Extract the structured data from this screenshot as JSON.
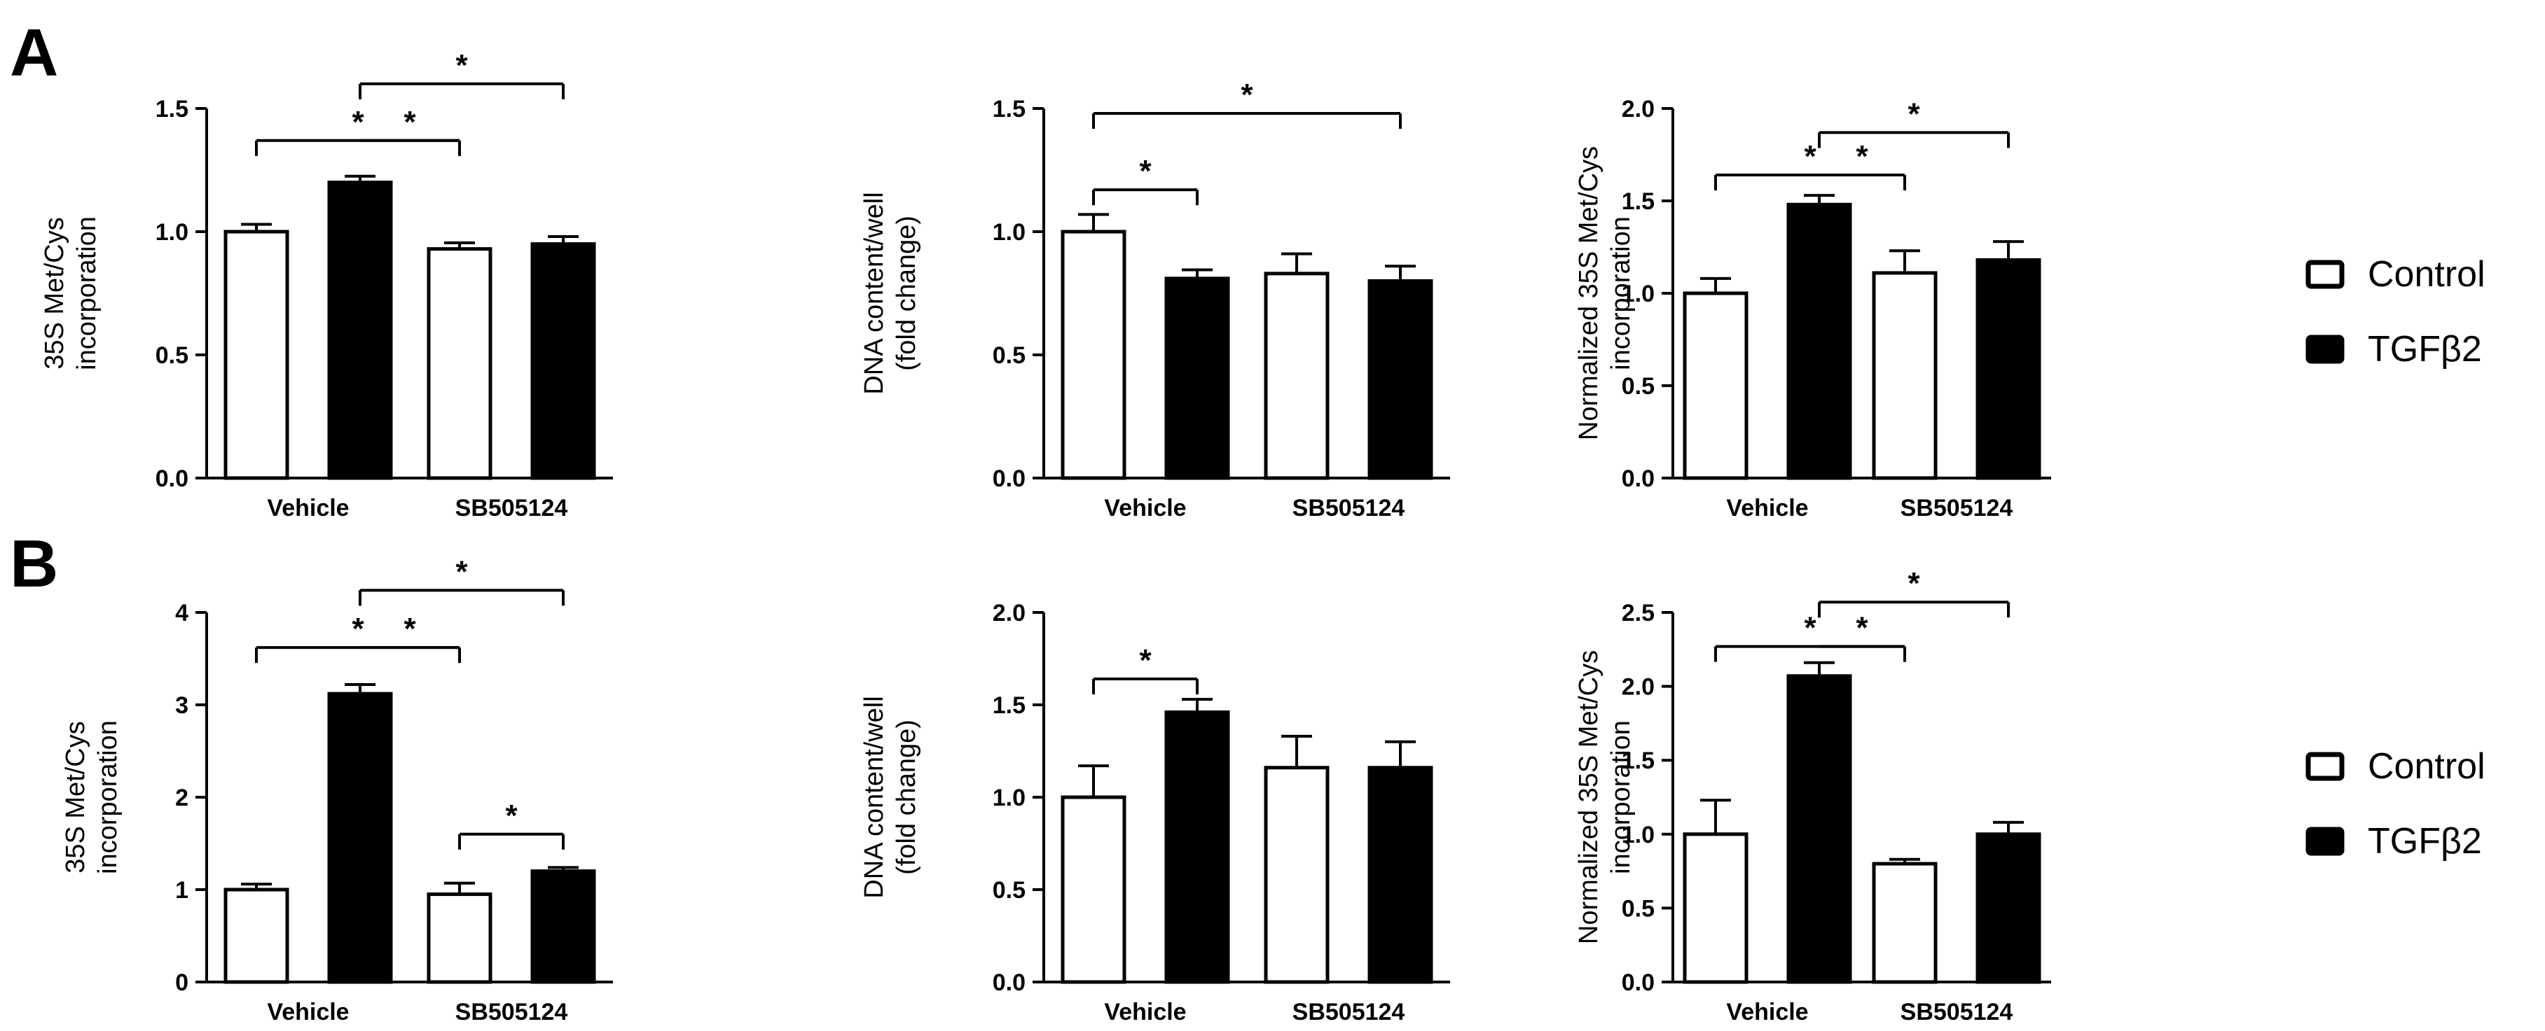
{
  "panels": [
    {
      "label": "A"
    },
    {
      "label": "B"
    }
  ],
  "legend": {
    "entries": [
      {
        "name": "Control",
        "fill": "#ffffff"
      },
      {
        "name": "TGFβ2",
        "fill": "#000000"
      }
    ]
  },
  "colors": {
    "control": "#ffffff",
    "tgf": "#000000",
    "stroke": "#000000"
  },
  "chart_data": [
    {
      "id": "A1",
      "type": "bar",
      "panel": "A",
      "title": "",
      "xlabel": "",
      "ylabel": [
        "35S Met/Cys",
        "incorporation"
      ],
      "categories": [
        "Vehicle",
        "SB505124"
      ],
      "series": [
        {
          "name": "Control",
          "values": [
            1.0,
            0.93
          ],
          "errors": [
            0.03,
            0.025
          ]
        },
        {
          "name": "TGFβ2",
          "values": [
            1.2,
            0.95
          ],
          "errors": [
            0.025,
            0.03
          ]
        }
      ],
      "ylim": [
        0,
        1.5
      ],
      "yticks": [
        0.0,
        0.5,
        1.0,
        1.5
      ],
      "yticklabels": [
        "0.0",
        "0.5",
        "1.0",
        "1.5"
      ],
      "brackets": [
        {
          "from": [
            0,
            0
          ],
          "to": [
            1,
            0
          ],
          "y": 1.37,
          "label": "*"
        },
        {
          "from": [
            0,
            1
          ],
          "to": [
            1,
            1
          ],
          "y": 1.6,
          "label": "*",
          "drop_from": true
        },
        {
          "from": [
            0,
            1
          ],
          "to": [
            1,
            0
          ],
          "y": 1.37,
          "label": "*",
          "trunk": true
        }
      ]
    },
    {
      "id": "A2",
      "type": "bar",
      "panel": "A",
      "title": "",
      "xlabel": "",
      "ylabel": [
        "DNA content/well",
        "(fold change)"
      ],
      "categories": [
        "Vehicle",
        "SB505124"
      ],
      "series": [
        {
          "name": "Control",
          "values": [
            1.0,
            0.83
          ],
          "errors": [
            0.07,
            0.08
          ]
        },
        {
          "name": "TGFβ2",
          "values": [
            0.81,
            0.8
          ],
          "errors": [
            0.035,
            0.06
          ]
        }
      ],
      "ylim": [
        0,
        1.5
      ],
      "yticks": [
        0.0,
        0.5,
        1.0,
        1.5
      ],
      "yticklabels": [
        "0.0",
        "0.5",
        "1.0",
        "1.5"
      ],
      "brackets": [
        {
          "from": [
            0,
            0
          ],
          "to": [
            0,
            1
          ],
          "y": 1.17,
          "label": "*"
        },
        {
          "from": [
            0,
            0
          ],
          "to": [
            1,
            1
          ],
          "y": 1.48,
          "label": "*"
        }
      ]
    },
    {
      "id": "A3",
      "type": "bar",
      "panel": "A",
      "title": "",
      "xlabel": "",
      "ylabel": [
        "Normalized 35S Met/Cys",
        "incorporation"
      ],
      "categories": [
        "Vehicle",
        "SB505124"
      ],
      "series": [
        {
          "name": "Control",
          "values": [
            1.0,
            1.11
          ],
          "errors": [
            0.08,
            0.12
          ]
        },
        {
          "name": "TGFβ2",
          "values": [
            1.48,
            1.18
          ],
          "errors": [
            0.05,
            0.1
          ]
        }
      ],
      "ylim": [
        0,
        2.0
      ],
      "yticks": [
        0.0,
        0.5,
        1.0,
        1.5,
        2.0
      ],
      "yticklabels": [
        "0.0",
        "0.5",
        "1.0",
        "1.5",
        "2.0"
      ],
      "brackets": [
        {
          "from": [
            0,
            0
          ],
          "to": [
            1,
            0
          ],
          "y": 1.64,
          "label": "*"
        },
        {
          "from": [
            0,
            1
          ],
          "to": [
            1,
            1
          ],
          "y": 1.87,
          "label": "*",
          "drop_from": true
        },
        {
          "from": [
            0,
            1
          ],
          "to": [
            1,
            0
          ],
          "y": 1.64,
          "label": "*",
          "trunk": true
        }
      ]
    },
    {
      "id": "B1",
      "type": "bar",
      "panel": "B",
      "title": "",
      "xlabel": "",
      "ylabel": [
        "35S Met/Cys",
        "incorporation"
      ],
      "categories": [
        "Vehicle",
        "SB505124"
      ],
      "series": [
        {
          "name": "Control",
          "values": [
            1.0,
            0.95
          ],
          "errors": [
            0.06,
            0.12
          ]
        },
        {
          "name": "TGFβ2",
          "values": [
            3.12,
            1.2
          ],
          "errors": [
            0.1,
            0.04
          ]
        }
      ],
      "ylim": [
        0,
        4
      ],
      "yticks": [
        0,
        1,
        2,
        3,
        4
      ],
      "yticklabels": [
        "0",
        "1",
        "2",
        "3",
        "4"
      ],
      "brackets": [
        {
          "from": [
            0,
            0
          ],
          "to": [
            1,
            0
          ],
          "y": 3.62,
          "label": "*"
        },
        {
          "from": [
            0,
            1
          ],
          "to": [
            1,
            1
          ],
          "y": 4.24,
          "label": "*",
          "drop_from": true
        },
        {
          "from": [
            0,
            1
          ],
          "to": [
            1,
            0
          ],
          "y": 3.62,
          "label": "*",
          "trunk": true
        },
        {
          "from": [
            1,
            0
          ],
          "to": [
            1,
            1
          ],
          "y": 1.6,
          "label": "*"
        }
      ]
    },
    {
      "id": "B2",
      "type": "bar",
      "panel": "B",
      "title": "",
      "xlabel": "",
      "ylabel": [
        "DNA content/well",
        "(fold change)"
      ],
      "categories": [
        "Vehicle",
        "SB505124"
      ],
      "series": [
        {
          "name": "Control",
          "values": [
            1.0,
            1.16
          ],
          "errors": [
            0.17,
            0.17
          ]
        },
        {
          "name": "TGFβ2",
          "values": [
            1.46,
            1.16
          ],
          "errors": [
            0.07,
            0.14
          ]
        }
      ],
      "ylim": [
        0,
        2.0
      ],
      "yticks": [
        0.0,
        0.5,
        1.0,
        1.5,
        2.0
      ],
      "yticklabels": [
        "0.0",
        "0.5",
        "1.0",
        "1.5",
        "2.0"
      ],
      "brackets": [
        {
          "from": [
            0,
            0
          ],
          "to": [
            0,
            1
          ],
          "y": 1.64,
          "label": "*"
        }
      ]
    },
    {
      "id": "B3",
      "type": "bar",
      "panel": "B",
      "title": "",
      "xlabel": "",
      "ylabel": [
        "Normalized 35S Met/Cys",
        "incorporation"
      ],
      "categories": [
        "Vehicle",
        "SB505124"
      ],
      "series": [
        {
          "name": "Control",
          "values": [
            1.0,
            0.8
          ],
          "errors": [
            0.23,
            0.03
          ]
        },
        {
          "name": "TGFβ2",
          "values": [
            2.07,
            1.0
          ],
          "errors": [
            0.09,
            0.08
          ]
        }
      ],
      "ylim": [
        0,
        2.5
      ],
      "yticks": [
        0.0,
        0.5,
        1.0,
        1.5,
        2.0,
        2.5
      ],
      "yticklabels": [
        "0.0",
        "0.5",
        "1.0",
        "1.5",
        "2.0",
        "2.5"
      ],
      "brackets": [
        {
          "from": [
            0,
            0
          ],
          "to": [
            1,
            0
          ],
          "y": 2.27,
          "label": "*"
        },
        {
          "from": [
            0,
            1
          ],
          "to": [
            1,
            1
          ],
          "y": 2.57,
          "label": "*",
          "drop_from": true
        },
        {
          "from": [
            0,
            1
          ],
          "to": [
            1,
            0
          ],
          "y": 2.27,
          "label": "*",
          "trunk": true
        }
      ]
    }
  ]
}
